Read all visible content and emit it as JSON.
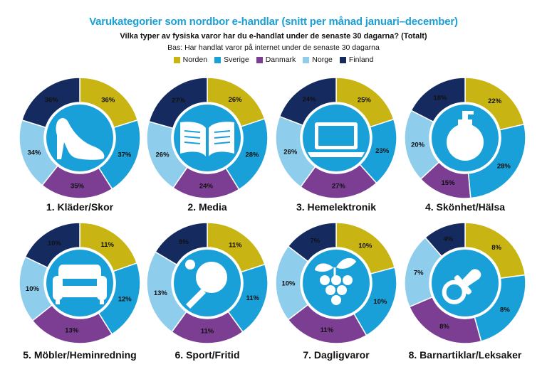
{
  "title": "Varukategorier som nordbor e-handlar (snitt per månad januari–december)",
  "subtitle": "Vilka typer av fysiska varor har du e-handlat under de senaste 30 dagarna? (Totalt)",
  "base": "Bas: Har handlat varor på internet under de senaste 30 dagarna",
  "colors": {
    "Norden": "#c8b412",
    "Sverige": "#1aa0d8",
    "Danmark": "#7b3e92",
    "Norge": "#8fcdec",
    "Finland": "#152a5e",
    "center": "#1aa0d8"
  },
  "chart_data": {
    "type": "donut",
    "series_names": [
      "Norden",
      "Sverige",
      "Danmark",
      "Norge",
      "Finland"
    ],
    "charts": [
      {
        "label": "1. Kläder/Skor",
        "icon": "high-heel-shoe-icon",
        "values": [
          36,
          37,
          35,
          34,
          36
        ],
        "labels": [
          "36%",
          "37%",
          "35%",
          "34%",
          "36%"
        ]
      },
      {
        "label": "2. Media",
        "icon": "open-book-icon",
        "values": [
          26,
          28,
          24,
          26,
          27
        ],
        "labels": [
          "26%",
          "28%",
          "24%",
          "26%",
          "27%"
        ]
      },
      {
        "label": "3. Hemelektronik",
        "icon": "laptop-icon",
        "values": [
          25,
          23,
          27,
          26,
          24
        ],
        "labels": [
          "25%",
          "23%",
          "27%",
          "26%",
          "24%"
        ]
      },
      {
        "label": "4. Skönhet/Hälsa",
        "icon": "lotion-bottle-icon",
        "values": [
          22,
          28,
          15,
          20,
          18
        ],
        "labels": [
          "22%",
          "28%",
          "15%",
          "20%",
          "18%"
        ]
      },
      {
        "label": "5. Möbler/Heminredning",
        "icon": "armchair-icon",
        "values": [
          11,
          12,
          13,
          10,
          10
        ],
        "labels": [
          "11%",
          "12%",
          "13%",
          "10%",
          "10%"
        ]
      },
      {
        "label": "6. Sport/Fritid",
        "icon": "ping-pong-paddle-icon",
        "values": [
          11,
          11,
          11,
          13,
          9
        ],
        "labels": [
          "11%",
          "11%",
          "11%",
          "13%",
          "9%"
        ]
      },
      {
        "label": "7. Dagligvaror",
        "icon": "grapes-icon",
        "values": [
          10,
          10,
          11,
          10,
          7
        ],
        "labels": [
          "10%",
          "10%",
          "11%",
          "10%",
          "7%"
        ]
      },
      {
        "label": "8. Barnartiklar/Leksaker",
        "icon": "pacifier-icon",
        "values": [
          8,
          8,
          8,
          7,
          4
        ],
        "labels": [
          "8%",
          "8%",
          "8%",
          "7%",
          "4%"
        ]
      }
    ]
  }
}
